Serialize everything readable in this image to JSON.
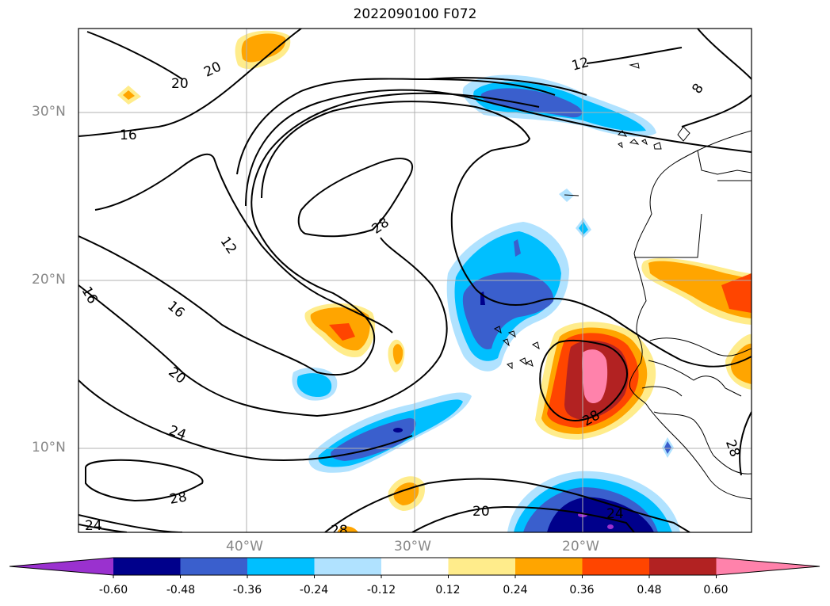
{
  "title": "2022090100 F072",
  "lat_labels": [
    "30°N",
    "20°N",
    "10°N"
  ],
  "lon_labels": [
    "40°W",
    "30°W",
    "20°W"
  ],
  "contour_labels": [
    "20",
    "20",
    "16",
    "12",
    "16",
    "20",
    "24",
    "28",
    "24",
    "28",
    "12",
    "8",
    "28",
    "28",
    "20",
    "24",
    "28",
    "16"
  ],
  "colorbar": {
    "colors": [
      "#9a31cf",
      "#00008b",
      "#3a5fcd",
      "#00bfff",
      "#b0e2ff",
      "#ffffff",
      "#ffec8b",
      "#ffa500",
      "#ff4500",
      "#b22222",
      "#ff82ab"
    ],
    "ticks": [
      "-0.60",
      "-0.48",
      "-0.36",
      "-0.24",
      "-0.12",
      "0.12",
      "0.24",
      "0.36",
      "0.48",
      "0.60"
    ]
  }
}
